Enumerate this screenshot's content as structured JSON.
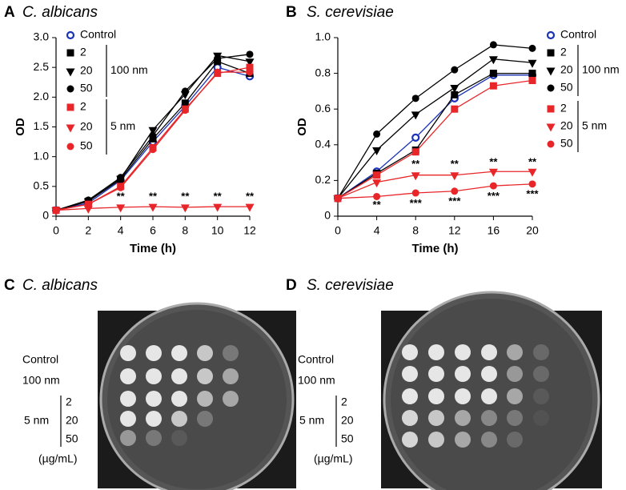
{
  "chart_data": [
    {
      "type": "line",
      "panel": "A",
      "title": "C. albicans",
      "xlabel": "Time (h)",
      "ylabel": "OD",
      "x": [
        0,
        2,
        4,
        6,
        8,
        10,
        12
      ],
      "xlim": [
        0,
        12
      ],
      "xticks": [
        0,
        2,
        4,
        6,
        8,
        10,
        12
      ],
      "ylim": [
        0,
        3
      ],
      "yticks": [
        0,
        {
          "value": 0.5,
          "label": "0.5"
        },
        {
          "value": 1,
          "label": "1.0"
        },
        {
          "value": 1.5,
          "label": "1.5"
        },
        {
          "value": 2,
          "label": "2.0"
        },
        {
          "value": 2.5,
          "label": "2.5"
        },
        {
          "value": 3,
          "label": "3.0"
        }
      ],
      "series": [
        {
          "name": "Control",
          "color": "#1c33b8",
          "marker": "circle-open",
          "values": [
            0.1,
            0.22,
            0.6,
            1.25,
            1.85,
            2.5,
            2.35
          ]
        },
        {
          "name": "2",
          "group": "100 nm",
          "color": "#000000",
          "marker": "square",
          "values": [
            0.1,
            0.25,
            0.62,
            1.3,
            1.9,
            2.6,
            2.4
          ]
        },
        {
          "name": "20",
          "group": "100 nm",
          "color": "#000000",
          "marker": "triangle",
          "values": [
            0.1,
            0.25,
            0.63,
            1.45,
            2.05,
            2.7,
            2.6
          ]
        },
        {
          "name": "50",
          "group": "100 nm",
          "color": "#000000",
          "marker": "circle",
          "values": [
            0.1,
            0.27,
            0.65,
            1.35,
            2.1,
            2.65,
            2.72
          ]
        },
        {
          "name": "2",
          "group": "5 nm",
          "color": "#e8262a",
          "marker": "square",
          "values": [
            0.1,
            0.2,
            0.5,
            1.15,
            1.8,
            2.4,
            2.5
          ]
        },
        {
          "name": "20",
          "group": "5 nm",
          "color": "#e8262a",
          "marker": "triangle",
          "values": [
            0.1,
            0.13,
            0.15,
            0.16,
            0.15,
            0.16,
            0.16
          ]
        },
        {
          "name": "50",
          "group": "5 nm",
          "color": "#e8262a",
          "marker": "circle",
          "values": [
            0.1,
            0.2,
            0.48,
            1.12,
            1.78,
            2.42,
            2.42
          ]
        }
      ],
      "annotations": [
        {
          "text": "**",
          "x": 4,
          "y": 0.32
        },
        {
          "text": "**",
          "x": 6,
          "y": 0.32
        },
        {
          "text": "**",
          "x": 8,
          "y": 0.32
        },
        {
          "text": "**",
          "x": 10,
          "y": 0.32
        },
        {
          "text": "**",
          "x": 12,
          "y": 0.32
        }
      ]
    },
    {
      "type": "line",
      "panel": "B",
      "title": "S. cerevisiae",
      "xlabel": "Time (h)",
      "ylabel": "OD",
      "x": [
        0,
        4,
        8,
        12,
        16,
        20
      ],
      "xlim": [
        0,
        20
      ],
      "xticks": [
        0,
        4,
        8,
        12,
        16,
        20
      ],
      "ylim": [
        0,
        1
      ],
      "yticks": [
        0,
        0.2,
        0.4,
        0.6,
        0.8,
        {
          "value": 1,
          "label": "1.0"
        }
      ],
      "series": [
        {
          "name": "Control",
          "color": "#1c33b8",
          "marker": "circle-open",
          "values": [
            0.1,
            0.25,
            0.44,
            0.66,
            0.79,
            0.79
          ]
        },
        {
          "name": "2",
          "group": "100 nm",
          "color": "#000000",
          "marker": "square",
          "values": [
            0.1,
            0.24,
            0.37,
            0.68,
            0.8,
            0.8
          ]
        },
        {
          "name": "20",
          "group": "100 nm",
          "color": "#000000",
          "marker": "triangle",
          "values": [
            0.1,
            0.37,
            0.57,
            0.72,
            0.88,
            0.86
          ]
        },
        {
          "name": "50",
          "group": "100 nm",
          "color": "#000000",
          "marker": "circle",
          "values": [
            0.1,
            0.46,
            0.66,
            0.82,
            0.96,
            0.94
          ]
        },
        {
          "name": "2",
          "group": "5 nm",
          "color": "#e8262a",
          "marker": "square",
          "values": [
            0.1,
            0.23,
            0.36,
            0.6,
            0.73,
            0.76
          ]
        },
        {
          "name": "20",
          "group": "5 nm",
          "color": "#e8262a",
          "marker": "triangle",
          "values": [
            0.1,
            0.19,
            0.23,
            0.23,
            0.25,
            0.25
          ]
        },
        {
          "name": "50",
          "group": "5 nm",
          "color": "#e8262a",
          "marker": "circle",
          "values": [
            0.1,
            0.11,
            0.13,
            0.14,
            0.17,
            0.18
          ]
        }
      ],
      "annotations": [
        {
          "text": "**",
          "x": 4,
          "y": 0.06
        },
        {
          "text": "**",
          "x": 8,
          "y": 0.29
        },
        {
          "text": "**",
          "x": 12,
          "y": 0.29
        },
        {
          "text": "**",
          "x": 16,
          "y": 0.3
        },
        {
          "text": "**",
          "x": 20,
          "y": 0.3
        },
        {
          "text": "***",
          "x": 8,
          "y": 0.07
        },
        {
          "text": "***",
          "x": 12,
          "y": 0.08
        },
        {
          "text": "***",
          "x": 16,
          "y": 0.11
        },
        {
          "text": "***",
          "x": 20,
          "y": 0.12
        }
      ]
    }
  ],
  "photo_panels": [
    {
      "panel": "C",
      "title": "C. albicans",
      "rows": [
        "Control",
        "100 nm"
      ],
      "group": "5 nm",
      "doses": [
        "2",
        "20",
        "50"
      ],
      "unit": "(µg/mL)"
    },
    {
      "panel": "D",
      "title": "S. cerevisiae",
      "rows": [
        "Control",
        "100 nm"
      ],
      "group": "5 nm",
      "doses": [
        "2",
        "20",
        "50"
      ],
      "unit": "(µg/mL)"
    }
  ]
}
